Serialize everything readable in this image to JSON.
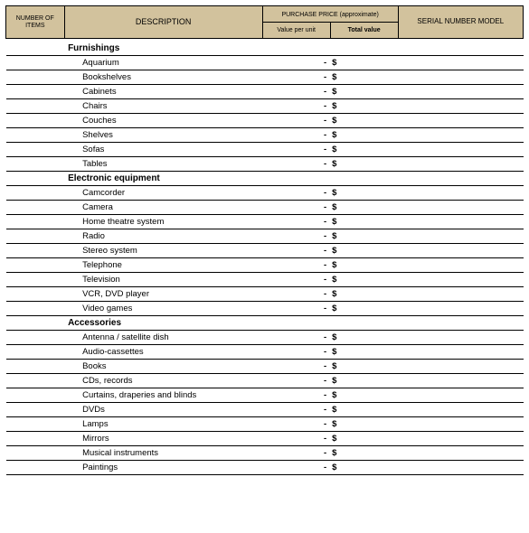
{
  "header": {
    "number_of_items": "NUMBER OF ITEMS",
    "description": "DESCRIPTION",
    "purchase_price": "PURCHASE PRICE (approximate)",
    "value_per_unit": "Value per unit",
    "total_value": "Total value",
    "serial_model": "SERIAL NUMBER MODEL"
  },
  "colors": {
    "header_bg": "#d2c29d",
    "border": "#000000",
    "text": "#000000"
  },
  "symbols": {
    "dash": "-",
    "dollar": "$"
  },
  "categories": [
    {
      "name": "Furnishings",
      "items": [
        "Aquarium",
        "Bookshelves",
        "Cabinets",
        "Chairs",
        "Couches",
        "Shelves",
        "Sofas",
        "Tables"
      ]
    },
    {
      "name": "Electronic equipment",
      "items": [
        "Camcorder",
        "Camera",
        "Home theatre system",
        "Radio",
        "Stereo system",
        "Telephone",
        "Television",
        "VCR, DVD player",
        "Video games"
      ]
    },
    {
      "name": "Accessories",
      "items": [
        "Antenna / satellite dish",
        "Audio-cassettes",
        "Books",
        "CDs, records",
        "Curtains, draperies and blinds",
        "DVDs",
        "Lamps",
        "Mirrors",
        "Musical instruments",
        "Paintings"
      ]
    }
  ]
}
